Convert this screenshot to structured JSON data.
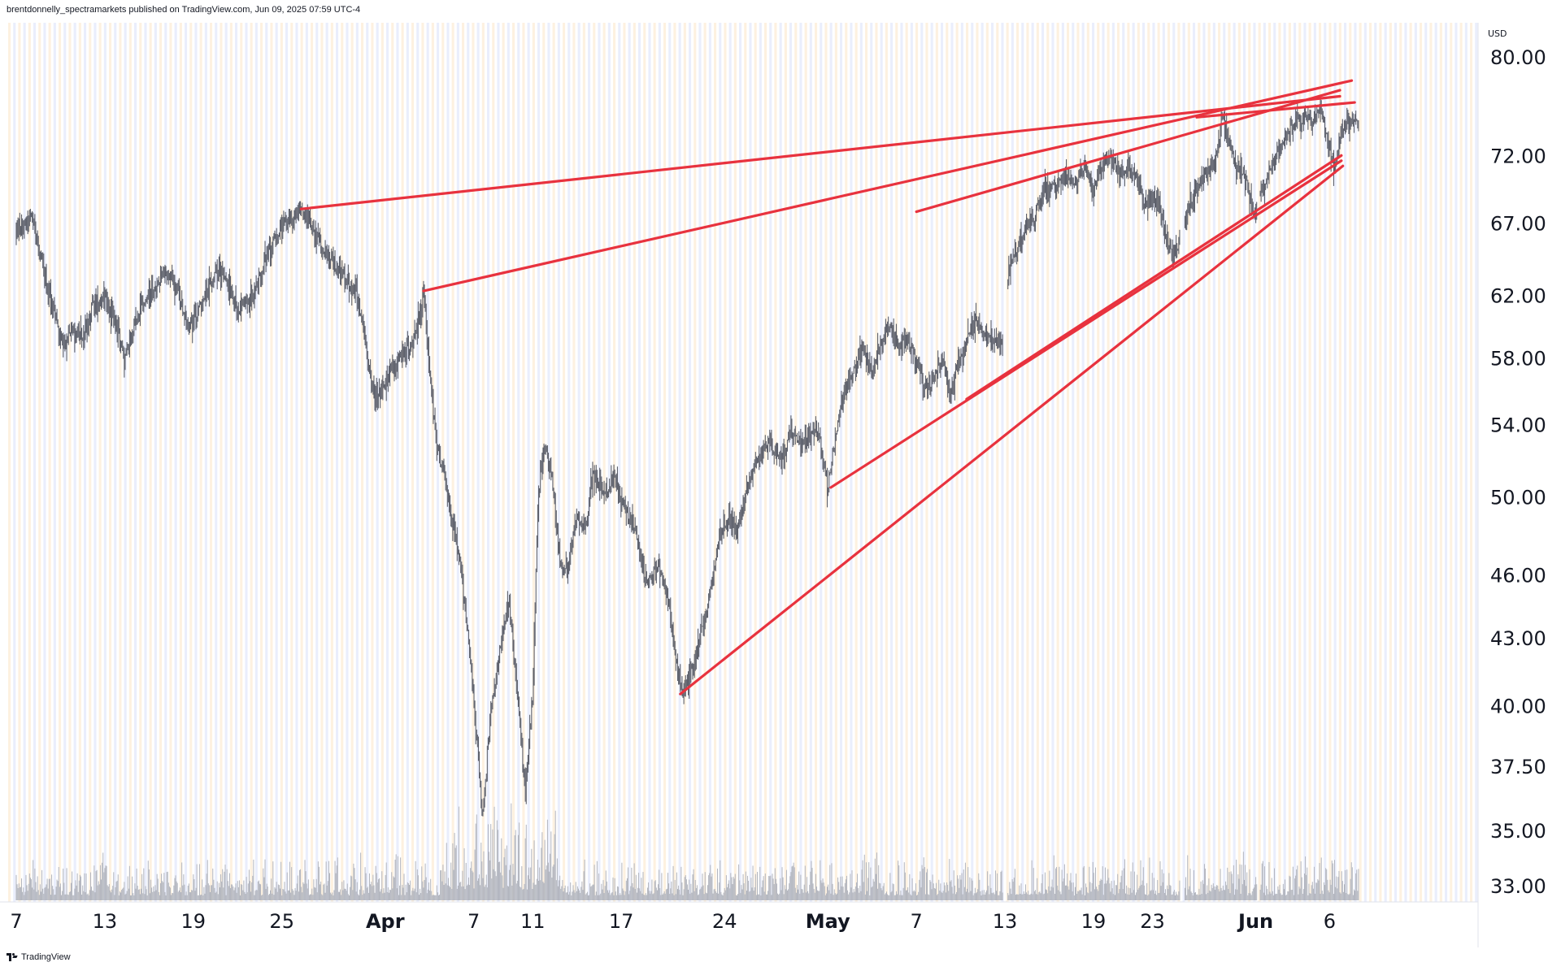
{
  "header": {
    "attribution": "brentdonnelly_spectramarkets published on TradingView.com, Jun 09, 2025 07:59 UTC-4"
  },
  "footer": {
    "brand": "TradingView"
  },
  "icons": {
    "brand_logo": "tradingview-logo-icon"
  },
  "colors": {
    "trendline": "#e8323e",
    "candle": "#5d606b",
    "volume": "#b2b5be",
    "stripe_orange": "#fdf1e0",
    "stripe_blue": "#eaeefc",
    "text": "#131722"
  },
  "chart_data": {
    "type": "line",
    "title": "",
    "currency_label": "USD",
    "y_scale": "log",
    "ylim": [
      32.0,
      82.0
    ],
    "y_ticks": [
      "80.00",
      "72.00",
      "67.00",
      "62.00",
      "58.00",
      "54.00",
      "50.00",
      "46.00",
      "43.00",
      "40.00",
      "37.50",
      "35.00",
      "33.00"
    ],
    "x_ticks": [
      {
        "label": "7",
        "day": 0,
        "month": false
      },
      {
        "label": "13",
        "day": 6,
        "month": false
      },
      {
        "label": "19",
        "day": 12,
        "month": false
      },
      {
        "label": "25",
        "day": 18,
        "month": false
      },
      {
        "label": "Apr",
        "day": 25,
        "month": true
      },
      {
        "label": "7",
        "day": 31,
        "month": false
      },
      {
        "label": "11",
        "day": 35,
        "month": false
      },
      {
        "label": "17",
        "day": 41,
        "month": false
      },
      {
        "label": "24",
        "day": 48,
        "month": false
      },
      {
        "label": "May",
        "day": 55,
        "month": true
      },
      {
        "label": "7",
        "day": 61,
        "month": false
      },
      {
        "label": "13",
        "day": 67,
        "month": false
      },
      {
        "label": "19",
        "day": 73,
        "month": false
      },
      {
        "label": "23",
        "day": 77,
        "month": false
      },
      {
        "label": "Jun",
        "day": 84,
        "month": true
      },
      {
        "label": "6",
        "day": 89,
        "month": false
      }
    ],
    "price_path": [
      [
        0,
        66.5
      ],
      [
        1,
        67.5
      ],
      [
        1.7,
        64.5
      ],
      [
        2.5,
        61.0
      ],
      [
        3.2,
        58.5
      ],
      [
        3.8,
        60.0
      ],
      [
        4.5,
        59.0
      ],
      [
        5.2,
        61.5
      ],
      [
        6,
        62.0
      ],
      [
        6.6,
        60.5
      ],
      [
        7.3,
        58.0
      ],
      [
        8,
        60.0
      ],
      [
        8.7,
        61.5
      ],
      [
        9.5,
        62.5
      ],
      [
        10.2,
        63.8
      ],
      [
        11,
        62.0
      ],
      [
        11.6,
        60.0
      ],
      [
        12.3,
        61.0
      ],
      [
        13,
        62.5
      ],
      [
        13.7,
        63.8
      ],
      [
        14.4,
        62.5
      ],
      [
        15,
        61.0
      ],
      [
        15.6,
        62.0
      ],
      [
        16.2,
        62.0
      ],
      [
        17,
        65.0
      ],
      [
        18,
        66.5
      ],
      [
        19.2,
        68.0
      ],
      [
        20,
        67.0
      ],
      [
        21,
        64.5
      ],
      [
        22,
        63.5
      ],
      [
        23,
        62.5
      ],
      [
        23.7,
        58.5
      ],
      [
        24.3,
        55.5
      ],
      [
        25,
        56.5
      ],
      [
        26,
        58.0
      ],
      [
        27,
        59.0
      ],
      [
        27.6,
        62.3
      ],
      [
        28,
        57.0
      ],
      [
        28.5,
        53.0
      ],
      [
        29,
        51.0
      ],
      [
        30,
        47.0
      ],
      [
        30.8,
        42.0
      ],
      [
        31.2,
        38.5
      ],
      [
        31.6,
        35.5
      ],
      [
        32.2,
        40.0
      ],
      [
        32.8,
        42.5
      ],
      [
        33.4,
        45.0
      ],
      [
        34,
        40.0
      ],
      [
        34.5,
        36.5
      ],
      [
        35,
        40.5
      ],
      [
        35.4,
        50.5
      ],
      [
        35.8,
        53.0
      ],
      [
        36.3,
        51.0
      ],
      [
        36.8,
        47.0
      ],
      [
        37.3,
        46.0
      ],
      [
        38,
        49.0
      ],
      [
        38.6,
        48.5
      ],
      [
        39.1,
        51.5
      ],
      [
        39.8,
        50.0
      ],
      [
        40.5,
        51.0
      ],
      [
        41.2,
        49.5
      ],
      [
        42,
        48.0
      ],
      [
        42.7,
        45.5
      ],
      [
        43.5,
        46.5
      ],
      [
        44.1,
        45.0
      ],
      [
        44.7,
        42.0
      ],
      [
        45.1,
        40.5
      ],
      [
        45.7,
        41.5
      ],
      [
        46.3,
        43.0
      ],
      [
        47,
        45.0
      ],
      [
        47.6,
        47.5
      ],
      [
        48.3,
        49.0
      ],
      [
        48.8,
        48.0
      ],
      [
        49.5,
        50.5
      ],
      [
        50.2,
        52.0
      ],
      [
        51,
        53.0
      ],
      [
        51.8,
        52.0
      ],
      [
        52.5,
        53.5
      ],
      [
        53.2,
        53.0
      ],
      [
        54,
        53.8
      ],
      [
        54.5,
        53.0
      ],
      [
        55.0,
        50.5
      ],
      [
        55.5,
        53.0
      ],
      [
        56.1,
        56.0
      ],
      [
        56.8,
        57.5
      ],
      [
        57.5,
        58.5
      ],
      [
        58,
        57.0
      ],
      [
        58.6,
        59.0
      ],
      [
        59.2,
        60.0
      ],
      [
        59.8,
        58.5
      ],
      [
        60.3,
        59.5
      ],
      [
        61,
        58.0
      ],
      [
        61.6,
        56.0
      ],
      [
        62.3,
        57.0
      ],
      [
        62.9,
        58.0
      ],
      [
        63.3,
        55.5
      ],
      [
        63.8,
        57.5
      ],
      [
        64.4,
        59.0
      ],
      [
        65,
        60.5
      ],
      [
        65.6,
        59.5
      ],
      [
        66.2,
        59.0
      ],
      [
        66.8,
        58.8
      ],
      [
        67.3,
        63.5
      ],
      [
        67.8,
        65.0
      ],
      [
        68.4,
        66.5
      ],
      [
        69,
        67.5
      ],
      [
        69.8,
        69.5
      ],
      [
        70.5,
        70.0
      ],
      [
        71.2,
        70.5
      ],
      [
        71.8,
        70.0
      ],
      [
        72.4,
        71.0
      ],
      [
        73,
        69.5
      ],
      [
        73.5,
        71.0
      ],
      [
        74.1,
        72.0
      ],
      [
        74.7,
        70.5
      ],
      [
        75.4,
        71.0
      ],
      [
        76,
        70.0
      ],
      [
        76.5,
        68.0
      ],
      [
        77.1,
        69.0
      ],
      [
        77.7,
        67.0
      ],
      [
        78.2,
        64.5
      ],
      [
        78.8,
        65.5
      ],
      [
        79.4,
        68.0
      ],
      [
        80,
        69.5
      ],
      [
        80.6,
        70.5
      ],
      [
        81.3,
        71.5
      ],
      [
        81.7,
        75.3
      ],
      [
        82.2,
        73.0
      ],
      [
        82.8,
        71.0
      ],
      [
        83.4,
        70.0
      ],
      [
        83.9,
        67.5
      ],
      [
        84.4,
        69.5
      ],
      [
        85,
        71.0
      ],
      [
        85.6,
        72.5
      ],
      [
        86.1,
        73.5
      ],
      [
        86.7,
        74.5
      ],
      [
        87.3,
        75.0
      ],
      [
        87.9,
        74.5
      ],
      [
        88.4,
        76.0
      ],
      [
        88.9,
        73.0
      ],
      [
        89.3,
        71.2
      ],
      [
        89.8,
        73.5
      ],
      [
        90.4,
        75.0
      ],
      [
        91,
        74.5
      ]
    ],
    "gaps": [
      [
        66.9,
        67.2
      ],
      [
        78.9,
        79.2
      ],
      [
        84.1,
        84.25
      ]
    ],
    "volume_series_color": "#b2b5be",
    "trendlines": [
      {
        "x1": 19.3,
        "y1": 68.0,
        "x2": 89.7,
        "y2": 76.7
      },
      {
        "x1": 27.6,
        "y1": 62.3,
        "x2": 90.5,
        "y2": 78.0
      },
      {
        "x1": 61.0,
        "y1": 67.8,
        "x2": 89.7,
        "y2": 77.2
      },
      {
        "x1": 80.0,
        "y1": 75.0,
        "x2": 90.7,
        "y2": 76.2
      },
      {
        "x1": 55.2,
        "y1": 50.5,
        "x2": 89.8,
        "y2": 71.6
      },
      {
        "x1": 64.4,
        "y1": 55.5,
        "x2": 89.8,
        "y2": 72.0
      },
      {
        "x1": 45.0,
        "y1": 40.5,
        "x2": 89.9,
        "y2": 71.2
      }
    ]
  }
}
